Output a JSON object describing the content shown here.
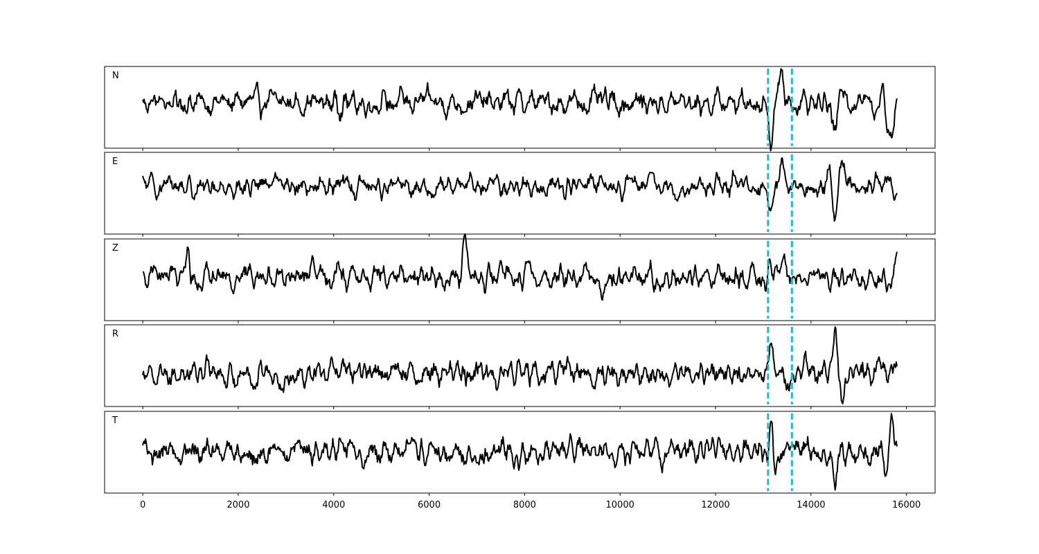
{
  "chart_data": {
    "type": "line",
    "title": "",
    "xlabel": "",
    "ylabel": "",
    "xlim": [
      -800,
      16600
    ],
    "x_ticks": [
      0,
      2000,
      4000,
      6000,
      8000,
      10000,
      12000,
      14000,
      16000
    ],
    "x_tick_labels": [
      "0",
      "2000",
      "4000",
      "6000",
      "8000",
      "10000",
      "12000",
      "14000",
      "16000"
    ],
    "x_range": [
      0,
      15800
    ],
    "grid": false,
    "legend": "none",
    "line_color": "#000000",
    "marker_color": "#17becf",
    "vertical_markers": [
      13100,
      13600
    ],
    "panels": [
      {
        "label": "N",
        "ylim": [
          -1.4,
          1.1
        ],
        "events": [
          {
            "x": 13170,
            "a": -1.3,
            "w": 55
          },
          {
            "x": 13300,
            "a": 0.55,
            "w": 60
          },
          {
            "x": 13400,
            "a": 0.6,
            "w": 60
          },
          {
            "x": 14500,
            "a": -1.0,
            "w": 70
          },
          {
            "x": 14700,
            "a": 0.6,
            "w": 80
          },
          {
            "x": 15500,
            "a": 0.9,
            "w": 50
          },
          {
            "x": 15650,
            "a": -1.0,
            "w": 110
          },
          {
            "x": 15790,
            "a": 0.5,
            "w": 50
          }
        ]
      },
      {
        "label": "E",
        "ylim": [
          -1.7,
          1.2
        ],
        "events": [
          {
            "x": 13150,
            "a": -0.8,
            "w": 55
          },
          {
            "x": 13400,
            "a": 0.6,
            "w": 60
          },
          {
            "x": 14400,
            "a": 0.6,
            "w": 60
          },
          {
            "x": 14500,
            "a": -1.4,
            "w": 60
          },
          {
            "x": 14650,
            "a": 0.8,
            "w": 60
          }
        ]
      },
      {
        "label": "Z",
        "ylim": [
          -1.4,
          1.2
        ],
        "events": [
          {
            "x": 950,
            "a": 1.0,
            "w": 45
          },
          {
            "x": 6750,
            "a": 1.2,
            "w": 50
          },
          {
            "x": 9600,
            "a": -0.8,
            "w": 45
          },
          {
            "x": 13450,
            "a": 0.8,
            "w": 55
          },
          {
            "x": 15780,
            "a": 0.7,
            "w": 45
          }
        ]
      },
      {
        "label": "R",
        "ylim": [
          -1.0,
          1.4
        ],
        "events": [
          {
            "x": 13170,
            "a": 0.9,
            "w": 50
          },
          {
            "x": 13500,
            "a": -0.7,
            "w": 60
          },
          {
            "x": 14500,
            "a": 1.3,
            "w": 55
          },
          {
            "x": 14650,
            "a": -0.7,
            "w": 60
          }
        ]
      },
      {
        "label": "T",
        "ylim": [
          -1.2,
          1.2
        ],
        "events": [
          {
            "x": 13160,
            "a": 0.7,
            "w": 50
          },
          {
            "x": 13250,
            "a": -0.6,
            "w": 50
          },
          {
            "x": 14500,
            "a": -1.1,
            "w": 55
          },
          {
            "x": 15600,
            "a": -0.8,
            "w": 45
          },
          {
            "x": 15690,
            "a": 1.0,
            "w": 60
          }
        ]
      }
    ]
  }
}
